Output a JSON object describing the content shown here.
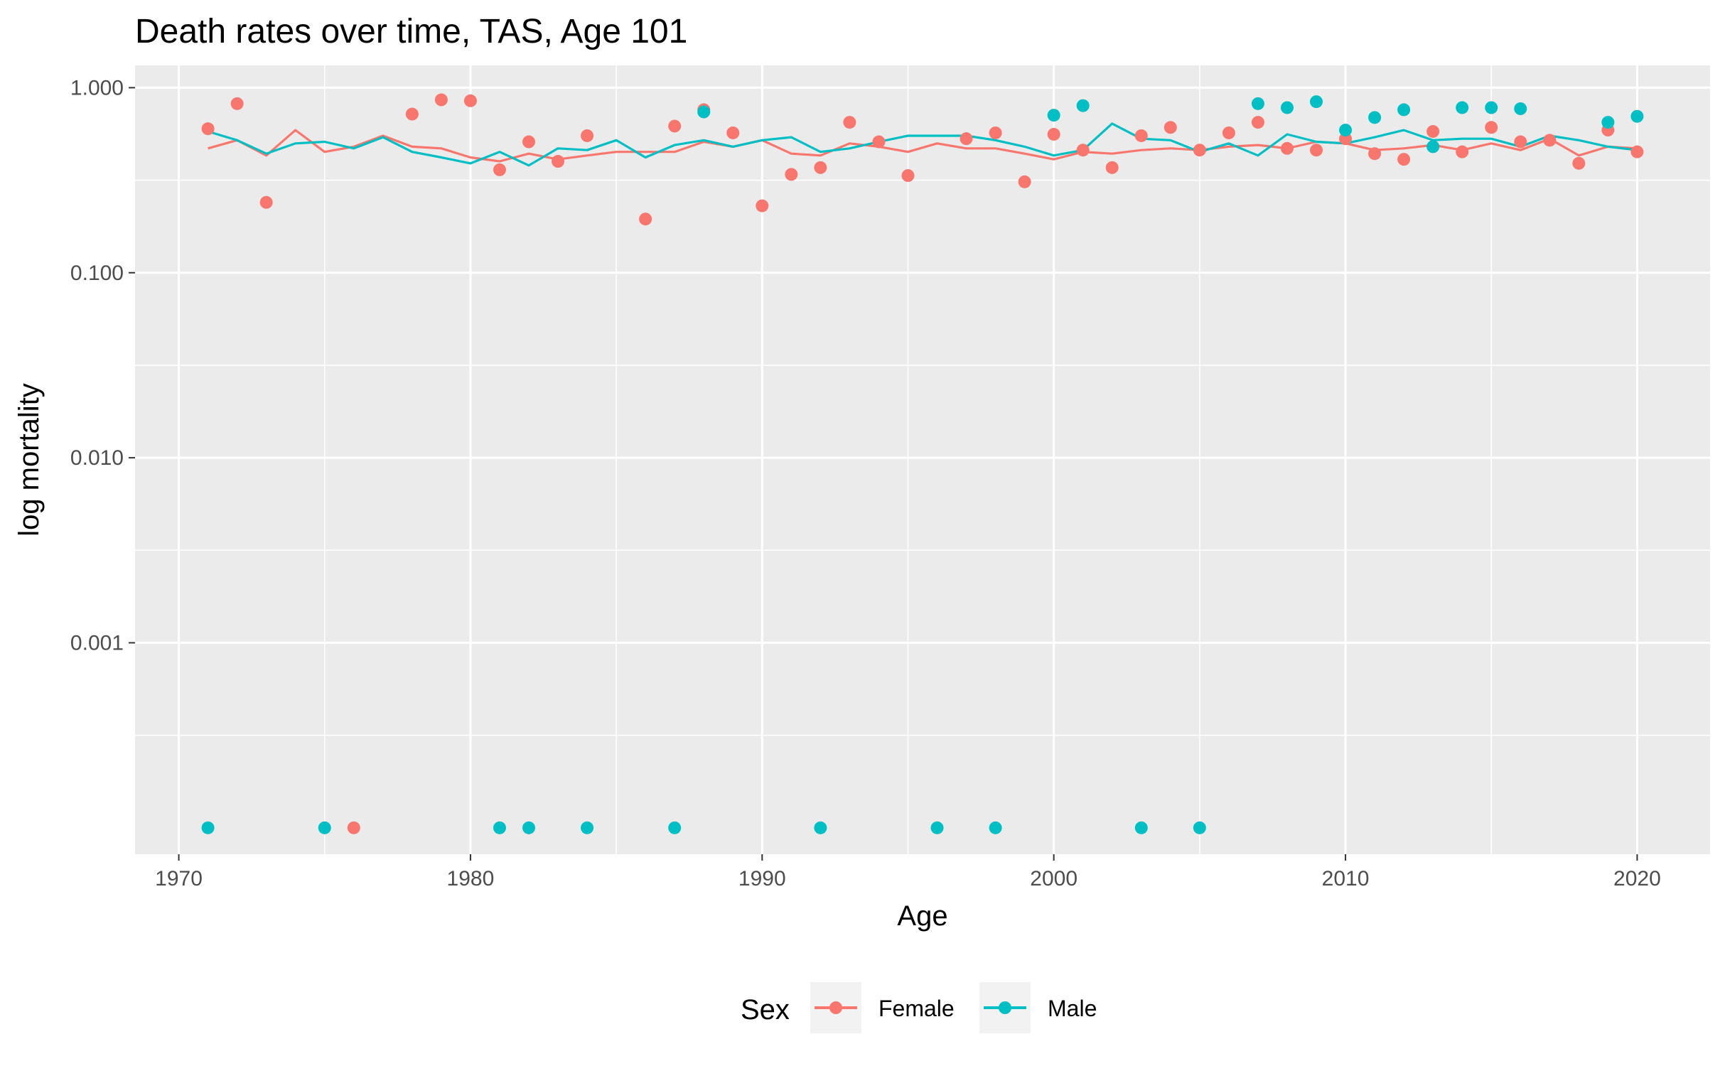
{
  "chart_data": {
    "type": "scatter",
    "title": "Death rates over time, TAS, Age 101",
    "xlabel": "Age",
    "ylabel": "log mortality",
    "x_ticks": [
      1970,
      1980,
      1990,
      2000,
      2010,
      2020
    ],
    "y_ticks": [
      {
        "value": 0.001,
        "label": "0.001"
      },
      {
        "value": 0.01,
        "label": "0.010"
      },
      {
        "value": 0.1,
        "label": "0.100"
      },
      {
        "value": 1,
        "label": "1.000"
      }
    ],
    "xlim": [
      1968.5,
      2022.5
    ],
    "ylim": [
      7.2e-05,
      1.32
    ],
    "y_scale": "log",
    "grid": true,
    "legend": {
      "title": "Sex",
      "position": "bottom"
    },
    "series": [
      {
        "name": "Female",
        "color": "#F8766D",
        "points": [
          [
            1971,
            0.6
          ],
          [
            1972,
            0.82
          ],
          [
            1973,
            0.24
          ],
          [
            1976,
            0.0001
          ],
          [
            1978,
            0.72
          ],
          [
            1979,
            0.86
          ],
          [
            1980,
            0.85
          ],
          [
            1981,
            0.36
          ],
          [
            1982,
            0.51
          ],
          [
            1983,
            0.4
          ],
          [
            1984,
            0.55
          ],
          [
            1986,
            0.195
          ],
          [
            1987,
            0.62
          ],
          [
            1988,
            0.76
          ],
          [
            1989,
            0.57
          ],
          [
            1990,
            0.23
          ],
          [
            1991,
            0.34
          ],
          [
            1992,
            0.37
          ],
          [
            1993,
            0.65
          ],
          [
            1994,
            0.51
          ],
          [
            1995,
            0.335
          ],
          [
            1997,
            0.53
          ],
          [
            1998,
            0.57
          ],
          [
            1999,
            0.31
          ],
          [
            2000,
            0.56
          ],
          [
            2001,
            0.46
          ],
          [
            2002,
            0.37
          ],
          [
            2003,
            0.55
          ],
          [
            2004,
            0.61
          ],
          [
            2005,
            0.46
          ],
          [
            2006,
            0.57
          ],
          [
            2007,
            0.65
          ],
          [
            2008,
            0.47
          ],
          [
            2009,
            0.46
          ],
          [
            2010,
            0.53
          ],
          [
            2011,
            0.44
          ],
          [
            2012,
            0.41
          ],
          [
            2013,
            0.58
          ],
          [
            2014,
            0.45
          ],
          [
            2015,
            0.61
          ],
          [
            2016,
            0.51
          ],
          [
            2017,
            0.52
          ],
          [
            2018,
            0.39
          ],
          [
            2019,
            0.59
          ],
          [
            2020,
            0.45
          ]
        ],
        "trend": [
          [
            1971,
            0.47
          ],
          [
            1972,
            0.52
          ],
          [
            1973,
            0.43
          ],
          [
            1974,
            0.59
          ],
          [
            1975,
            0.45
          ],
          [
            1976,
            0.48
          ],
          [
            1977,
            0.55
          ],
          [
            1978,
            0.48
          ],
          [
            1979,
            0.47
          ],
          [
            1980,
            0.42
          ],
          [
            1981,
            0.4
          ],
          [
            1982,
            0.44
          ],
          [
            1983,
            0.41
          ],
          [
            1984,
            0.43
          ],
          [
            1985,
            0.45
          ],
          [
            1986,
            0.45
          ],
          [
            1987,
            0.45
          ],
          [
            1988,
            0.51
          ],
          [
            1989,
            0.48
          ],
          [
            1990,
            0.52
          ],
          [
            1991,
            0.44
          ],
          [
            1992,
            0.43
          ],
          [
            1993,
            0.5
          ],
          [
            1994,
            0.48
          ],
          [
            1995,
            0.45
          ],
          [
            1996,
            0.5
          ],
          [
            1997,
            0.47
          ],
          [
            1998,
            0.47
          ],
          [
            1999,
            0.44
          ],
          [
            2000,
            0.41
          ],
          [
            2001,
            0.45
          ],
          [
            2002,
            0.44
          ],
          [
            2003,
            0.46
          ],
          [
            2004,
            0.47
          ],
          [
            2005,
            0.46
          ],
          [
            2006,
            0.48
          ],
          [
            2007,
            0.49
          ],
          [
            2008,
            0.47
          ],
          [
            2009,
            0.51
          ],
          [
            2010,
            0.5
          ],
          [
            2011,
            0.46
          ],
          [
            2012,
            0.47
          ],
          [
            2013,
            0.49
          ],
          [
            2014,
            0.46
          ],
          [
            2015,
            0.5
          ],
          [
            2016,
            0.46
          ],
          [
            2017,
            0.53
          ],
          [
            2018,
            0.43
          ],
          [
            2019,
            0.48
          ],
          [
            2020,
            0.47
          ]
        ]
      },
      {
        "name": "Male",
        "color": "#00BFC4",
        "points": [
          [
            1971,
            0.0001
          ],
          [
            1975,
            0.0001
          ],
          [
            1981,
            0.0001
          ],
          [
            1982,
            0.0001
          ],
          [
            1984,
            0.0001
          ],
          [
            1987,
            0.0001
          ],
          [
            1988,
            0.74
          ],
          [
            1992,
            0.0001
          ],
          [
            1996,
            0.0001
          ],
          [
            1998,
            0.0001
          ],
          [
            2000,
            0.71
          ],
          [
            2001,
            0.8
          ],
          [
            2003,
            0.0001
          ],
          [
            2005,
            0.0001
          ],
          [
            2007,
            0.82
          ],
          [
            2008,
            0.78
          ],
          [
            2009,
            0.84
          ],
          [
            2010,
            0.59
          ],
          [
            2011,
            0.69
          ],
          [
            2012,
            0.76
          ],
          [
            2013,
            0.48
          ],
          [
            2014,
            0.78
          ],
          [
            2015,
            0.78
          ],
          [
            2016,
            0.77
          ],
          [
            2019,
            0.65
          ],
          [
            2020,
            0.7
          ]
        ],
        "trend": [
          [
            1971,
            0.58
          ],
          [
            1972,
            0.52
          ],
          [
            1973,
            0.44
          ],
          [
            1974,
            0.5
          ],
          [
            1975,
            0.51
          ],
          [
            1976,
            0.47
          ],
          [
            1977,
            0.54
          ],
          [
            1978,
            0.45
          ],
          [
            1979,
            0.42
          ],
          [
            1980,
            0.39
          ],
          [
            1981,
            0.45
          ],
          [
            1982,
            0.38
          ],
          [
            1983,
            0.47
          ],
          [
            1984,
            0.46
          ],
          [
            1985,
            0.52
          ],
          [
            1986,
            0.42
          ],
          [
            1987,
            0.49
          ],
          [
            1988,
            0.52
          ],
          [
            1989,
            0.48
          ],
          [
            1990,
            0.52
          ],
          [
            1991,
            0.54
          ],
          [
            1992,
            0.45
          ],
          [
            1993,
            0.47
          ],
          [
            1994,
            0.51
          ],
          [
            1995,
            0.55
          ],
          [
            1996,
            0.55
          ],
          [
            1997,
            0.55
          ],
          [
            1998,
            0.52
          ],
          [
            1999,
            0.48
          ],
          [
            2000,
            0.43
          ],
          [
            2001,
            0.46
          ],
          [
            2002,
            0.64
          ],
          [
            2003,
            0.53
          ],
          [
            2004,
            0.52
          ],
          [
            2005,
            0.45
          ],
          [
            2006,
            0.5
          ],
          [
            2007,
            0.43
          ],
          [
            2008,
            0.56
          ],
          [
            2009,
            0.51
          ],
          [
            2010,
            0.5
          ],
          [
            2011,
            0.54
          ],
          [
            2012,
            0.59
          ],
          [
            2013,
            0.52
          ],
          [
            2014,
            0.53
          ],
          [
            2015,
            0.53
          ],
          [
            2016,
            0.48
          ],
          [
            2017,
            0.55
          ],
          [
            2018,
            0.52
          ],
          [
            2019,
            0.48
          ],
          [
            2020,
            0.46
          ]
        ]
      }
    ]
  }
}
